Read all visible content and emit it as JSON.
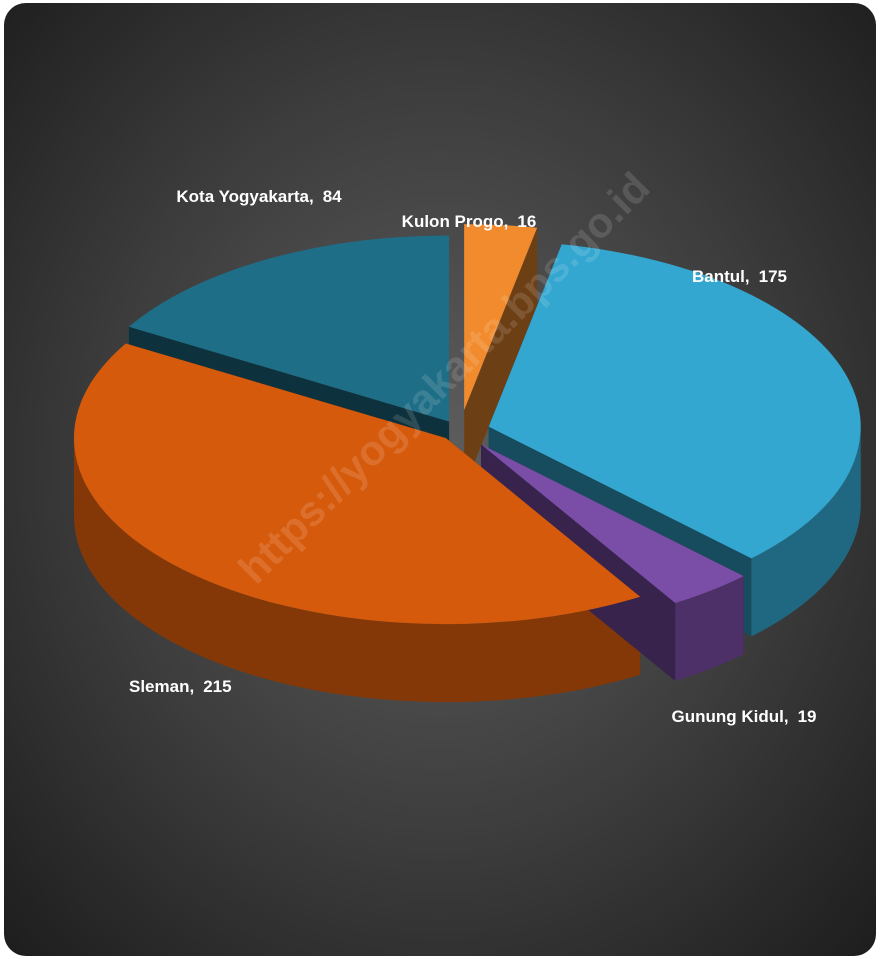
{
  "chart_data": {
    "type": "pie3d",
    "watermark": "https://yogyakarta.bps.go.id",
    "categories": [
      "Kulon Progo,",
      "Bantul,",
      "Gunung Kidul,",
      "Sleman,",
      "Kota Yogyakarta,"
    ],
    "values": [
      16,
      175,
      19,
      215,
      84
    ],
    "colors": [
      "#f28b2e",
      "#33a7d0",
      "#7a4ea6",
      "#d65a0c",
      "#1f6e87"
    ]
  }
}
